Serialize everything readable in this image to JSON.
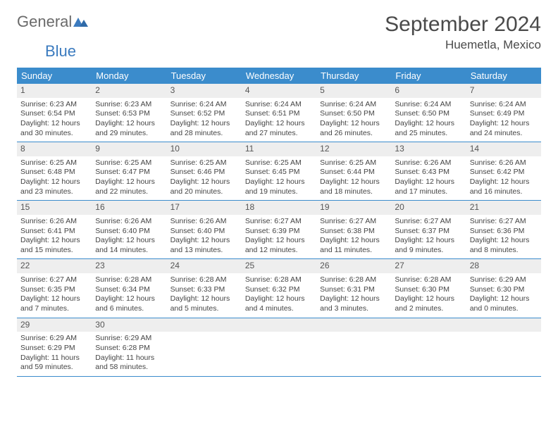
{
  "logo": {
    "text_gray": "General",
    "text_blue": "Blue"
  },
  "header": {
    "month_title": "September 2024",
    "location": "Huemetla, Mexico"
  },
  "calendar": {
    "type": "table",
    "header_bg": "#3b8ccc",
    "header_text_color": "#ffffff",
    "daynum_bg": "#eeeeee",
    "border_color": "#3b8ccc",
    "weekdays": [
      "Sunday",
      "Monday",
      "Tuesday",
      "Wednesday",
      "Thursday",
      "Friday",
      "Saturday"
    ],
    "weeks": [
      [
        {
          "n": "1",
          "sunrise": "Sunrise: 6:23 AM",
          "sunset": "Sunset: 6:54 PM",
          "day1": "Daylight: 12 hours",
          "day2": "and 30 minutes."
        },
        {
          "n": "2",
          "sunrise": "Sunrise: 6:23 AM",
          "sunset": "Sunset: 6:53 PM",
          "day1": "Daylight: 12 hours",
          "day2": "and 29 minutes."
        },
        {
          "n": "3",
          "sunrise": "Sunrise: 6:24 AM",
          "sunset": "Sunset: 6:52 PM",
          "day1": "Daylight: 12 hours",
          "day2": "and 28 minutes."
        },
        {
          "n": "4",
          "sunrise": "Sunrise: 6:24 AM",
          "sunset": "Sunset: 6:51 PM",
          "day1": "Daylight: 12 hours",
          "day2": "and 27 minutes."
        },
        {
          "n": "5",
          "sunrise": "Sunrise: 6:24 AM",
          "sunset": "Sunset: 6:50 PM",
          "day1": "Daylight: 12 hours",
          "day2": "and 26 minutes."
        },
        {
          "n": "6",
          "sunrise": "Sunrise: 6:24 AM",
          "sunset": "Sunset: 6:50 PM",
          "day1": "Daylight: 12 hours",
          "day2": "and 25 minutes."
        },
        {
          "n": "7",
          "sunrise": "Sunrise: 6:24 AM",
          "sunset": "Sunset: 6:49 PM",
          "day1": "Daylight: 12 hours",
          "day2": "and 24 minutes."
        }
      ],
      [
        {
          "n": "8",
          "sunrise": "Sunrise: 6:25 AM",
          "sunset": "Sunset: 6:48 PM",
          "day1": "Daylight: 12 hours",
          "day2": "and 23 minutes."
        },
        {
          "n": "9",
          "sunrise": "Sunrise: 6:25 AM",
          "sunset": "Sunset: 6:47 PM",
          "day1": "Daylight: 12 hours",
          "day2": "and 22 minutes."
        },
        {
          "n": "10",
          "sunrise": "Sunrise: 6:25 AM",
          "sunset": "Sunset: 6:46 PM",
          "day1": "Daylight: 12 hours",
          "day2": "and 20 minutes."
        },
        {
          "n": "11",
          "sunrise": "Sunrise: 6:25 AM",
          "sunset": "Sunset: 6:45 PM",
          "day1": "Daylight: 12 hours",
          "day2": "and 19 minutes."
        },
        {
          "n": "12",
          "sunrise": "Sunrise: 6:25 AM",
          "sunset": "Sunset: 6:44 PM",
          "day1": "Daylight: 12 hours",
          "day2": "and 18 minutes."
        },
        {
          "n": "13",
          "sunrise": "Sunrise: 6:26 AM",
          "sunset": "Sunset: 6:43 PM",
          "day1": "Daylight: 12 hours",
          "day2": "and 17 minutes."
        },
        {
          "n": "14",
          "sunrise": "Sunrise: 6:26 AM",
          "sunset": "Sunset: 6:42 PM",
          "day1": "Daylight: 12 hours",
          "day2": "and 16 minutes."
        }
      ],
      [
        {
          "n": "15",
          "sunrise": "Sunrise: 6:26 AM",
          "sunset": "Sunset: 6:41 PM",
          "day1": "Daylight: 12 hours",
          "day2": "and 15 minutes."
        },
        {
          "n": "16",
          "sunrise": "Sunrise: 6:26 AM",
          "sunset": "Sunset: 6:40 PM",
          "day1": "Daylight: 12 hours",
          "day2": "and 14 minutes."
        },
        {
          "n": "17",
          "sunrise": "Sunrise: 6:26 AM",
          "sunset": "Sunset: 6:40 PM",
          "day1": "Daylight: 12 hours",
          "day2": "and 13 minutes."
        },
        {
          "n": "18",
          "sunrise": "Sunrise: 6:27 AM",
          "sunset": "Sunset: 6:39 PM",
          "day1": "Daylight: 12 hours",
          "day2": "and 12 minutes."
        },
        {
          "n": "19",
          "sunrise": "Sunrise: 6:27 AM",
          "sunset": "Sunset: 6:38 PM",
          "day1": "Daylight: 12 hours",
          "day2": "and 11 minutes."
        },
        {
          "n": "20",
          "sunrise": "Sunrise: 6:27 AM",
          "sunset": "Sunset: 6:37 PM",
          "day1": "Daylight: 12 hours",
          "day2": "and 9 minutes."
        },
        {
          "n": "21",
          "sunrise": "Sunrise: 6:27 AM",
          "sunset": "Sunset: 6:36 PM",
          "day1": "Daylight: 12 hours",
          "day2": "and 8 minutes."
        }
      ],
      [
        {
          "n": "22",
          "sunrise": "Sunrise: 6:27 AM",
          "sunset": "Sunset: 6:35 PM",
          "day1": "Daylight: 12 hours",
          "day2": "and 7 minutes."
        },
        {
          "n": "23",
          "sunrise": "Sunrise: 6:28 AM",
          "sunset": "Sunset: 6:34 PM",
          "day1": "Daylight: 12 hours",
          "day2": "and 6 minutes."
        },
        {
          "n": "24",
          "sunrise": "Sunrise: 6:28 AM",
          "sunset": "Sunset: 6:33 PM",
          "day1": "Daylight: 12 hours",
          "day2": "and 5 minutes."
        },
        {
          "n": "25",
          "sunrise": "Sunrise: 6:28 AM",
          "sunset": "Sunset: 6:32 PM",
          "day1": "Daylight: 12 hours",
          "day2": "and 4 minutes."
        },
        {
          "n": "26",
          "sunrise": "Sunrise: 6:28 AM",
          "sunset": "Sunset: 6:31 PM",
          "day1": "Daylight: 12 hours",
          "day2": "and 3 minutes."
        },
        {
          "n": "27",
          "sunrise": "Sunrise: 6:28 AM",
          "sunset": "Sunset: 6:30 PM",
          "day1": "Daylight: 12 hours",
          "day2": "and 2 minutes."
        },
        {
          "n": "28",
          "sunrise": "Sunrise: 6:29 AM",
          "sunset": "Sunset: 6:30 PM",
          "day1": "Daylight: 12 hours",
          "day2": "and 0 minutes."
        }
      ],
      [
        {
          "n": "29",
          "sunrise": "Sunrise: 6:29 AM",
          "sunset": "Sunset: 6:29 PM",
          "day1": "Daylight: 11 hours",
          "day2": "and 59 minutes."
        },
        {
          "n": "30",
          "sunrise": "Sunrise: 6:29 AM",
          "sunset": "Sunset: 6:28 PM",
          "day1": "Daylight: 11 hours",
          "day2": "and 58 minutes."
        },
        {
          "empty": true
        },
        {
          "empty": true
        },
        {
          "empty": true
        },
        {
          "empty": true
        },
        {
          "empty": true
        }
      ]
    ]
  }
}
